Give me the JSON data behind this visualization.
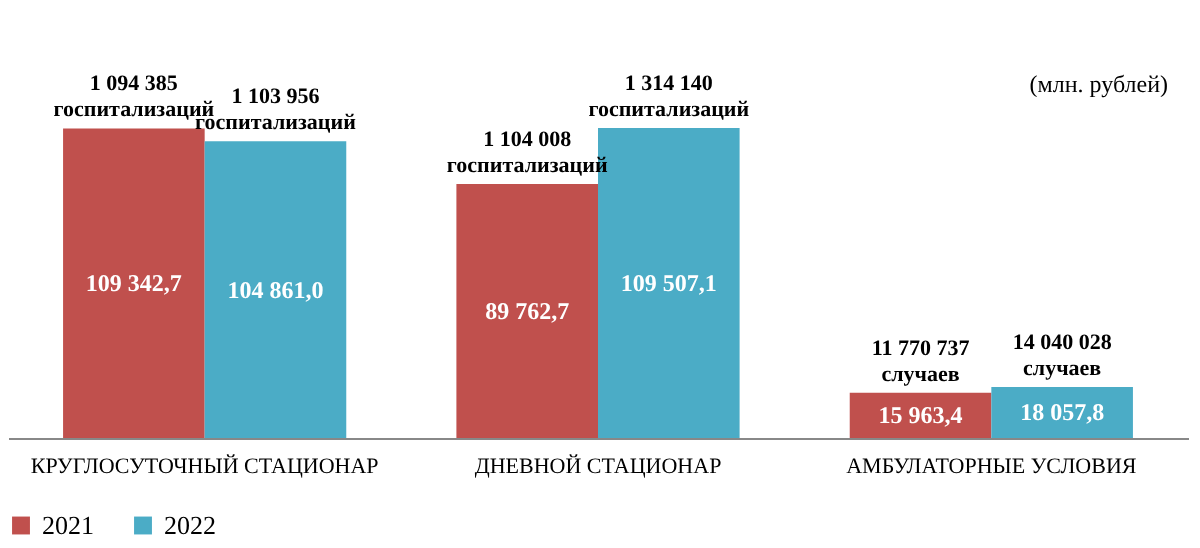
{
  "chart_data": {
    "type": "bar",
    "categories": [
      "КРУГЛОСУТОЧНЫЙ СТАЦИОНАР",
      "ДНЕВНОЙ СТАЦИОНАР",
      "АМБУЛАТОРНЫЕ УСЛОВИЯ"
    ],
    "series": [
      {
        "name": "2021",
        "color": "#c0504d",
        "values": [
          109342.7,
          89762.7,
          15963.4
        ],
        "value_labels": [
          "109 342,7",
          "89 762,7",
          "15 963,4"
        ]
      },
      {
        "name": "2022",
        "color": "#4bacc6",
        "values": [
          104861.0,
          109507.1,
          18057.8
        ],
        "value_labels": [
          "104 861,0",
          "109 507,1",
          "18 057,8"
        ]
      }
    ],
    "annotations": [
      "(млн. рублей)",
      {
        "text": "1 094 385\nгоспитализаций",
        "x": "КРУГЛОСУТОЧНЫЙ СТАЦИОНАР",
        "y": 109342.7
      },
      {
        "text": "1 103 956\nгоспитализаций",
        "x": "КРУГЛОСУТОЧНЫЙ СТАЦИОНАР",
        "y": 104861.0
      },
      {
        "text": "1 104 008\nгоспитализаций",
        "x": "ДНЕВНОЙ СТАЦИОНАР",
        "y": 89762.7
      },
      {
        "text": "1 314 140\nгоспитализаций",
        "x": "ДНЕВНОЙ СТАЦИОНАР",
        "y": 109507.1
      },
      {
        "text": "11 770 737\nслучаев",
        "x": "АМБУЛАТОРНЫЕ УСЛОВИЯ",
        "y": 15963.4
      },
      {
        "text": "14 040 028\nслучаев",
        "x": "АМБУЛАТОРНЫЕ УСЛОВИЯ",
        "y": 18057.8
      }
    ],
    "legend": "bottom"
  }
}
